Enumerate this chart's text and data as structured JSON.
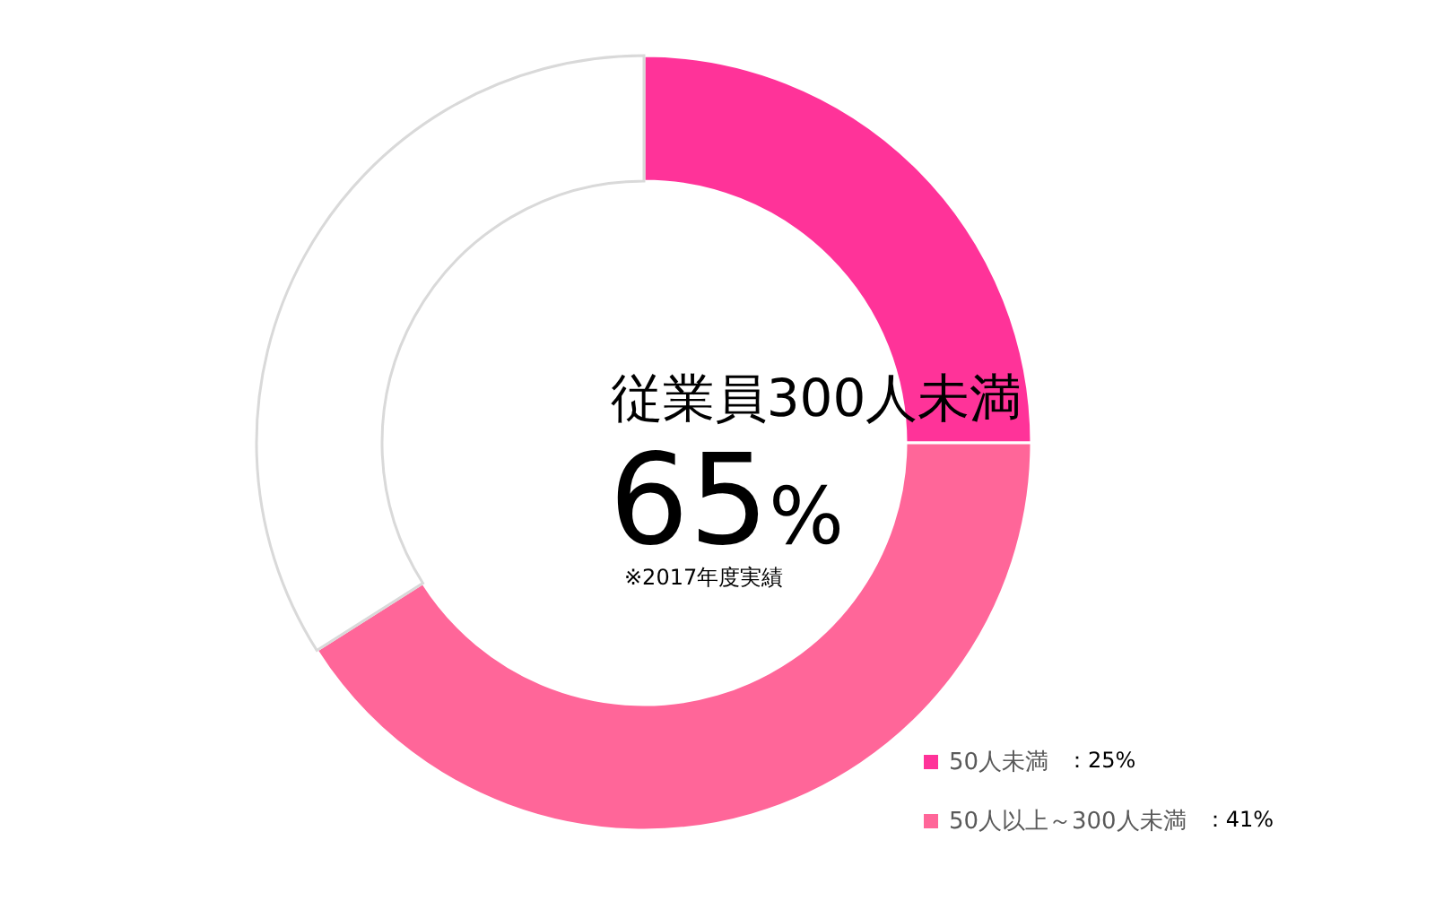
{
  "chart_data": {
    "type": "donut",
    "categories": [
      "50人未満",
      "50人以上～300人未満",
      null
    ],
    "values": [
      25,
      41,
      34
    ],
    "colors": [
      "#ff3399",
      "#ff6699",
      "#ffffff"
    ],
    "value_labels": [
      "：25%",
      "：41%",
      null
    ],
    "annotations": [
      "従業員300人未満",
      "65%",
      "※2017年度実績"
    ],
    "legend": "bottom right"
  }
}
